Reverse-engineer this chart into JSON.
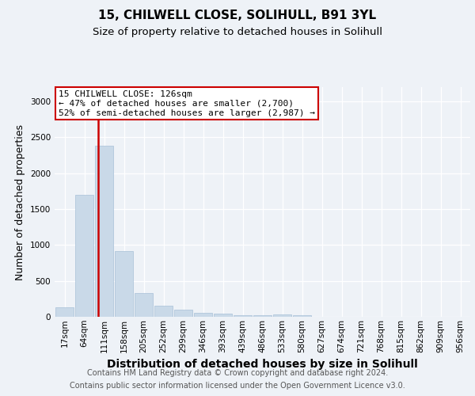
{
  "title_line1": "15, CHILWELL CLOSE, SOLIHULL, B91 3YL",
  "title_line2": "Size of property relative to detached houses in Solihull",
  "xlabel": "Distribution of detached houses by size in Solihull",
  "ylabel": "Number of detached properties",
  "bin_labels": [
    "17sqm",
    "64sqm",
    "111sqm",
    "158sqm",
    "205sqm",
    "252sqm",
    "299sqm",
    "346sqm",
    "393sqm",
    "439sqm",
    "486sqm",
    "533sqm",
    "580sqm",
    "627sqm",
    "674sqm",
    "721sqm",
    "768sqm",
    "815sqm",
    "862sqm",
    "909sqm",
    "956sqm"
  ],
  "bar_heights": [
    130,
    1700,
    2380,
    920,
    330,
    160,
    100,
    60,
    40,
    25,
    20,
    30,
    20,
    0,
    0,
    0,
    0,
    0,
    0,
    0,
    0
  ],
  "bar_color": "#c9d9e8",
  "bar_edgecolor": "#a8c0d8",
  "vline_color": "#cc0000",
  "annotation_text": "15 CHILWELL CLOSE: 126sqm\n← 47% of detached houses are smaller (2,700)\n52% of semi-detached houses are larger (2,987) →",
  "annotation_box_color": "#ffffff",
  "annotation_box_edgecolor": "#cc0000",
  "ylim": [
    0,
    3200
  ],
  "yticks": [
    0,
    500,
    1000,
    1500,
    2000,
    2500,
    3000
  ],
  "footer_line1": "Contains HM Land Registry data © Crown copyright and database right 2024.",
  "footer_line2": "Contains public sector information licensed under the Open Government Licence v3.0.",
  "background_color": "#eef2f7",
  "plot_background": "#eef2f7",
  "grid_color": "#ffffff",
  "title_fontsize": 11,
  "subtitle_fontsize": 9.5,
  "axis_label_fontsize": 9,
  "tick_fontsize": 7.5,
  "annotation_fontsize": 8,
  "footer_fontsize": 7
}
